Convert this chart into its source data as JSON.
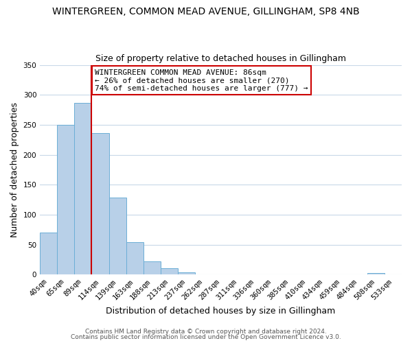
{
  "title": "WINTERGREEN, COMMON MEAD AVENUE, GILLINGHAM, SP8 4NB",
  "subtitle": "Size of property relative to detached houses in Gillingham",
  "xlabel": "Distribution of detached houses by size in Gillingham",
  "ylabel": "Number of detached properties",
  "bar_labels": [
    "40sqm",
    "65sqm",
    "89sqm",
    "114sqm",
    "139sqm",
    "163sqm",
    "188sqm",
    "213sqm",
    "237sqm",
    "262sqm",
    "287sqm",
    "311sqm",
    "336sqm",
    "360sqm",
    "385sqm",
    "410sqm",
    "434sqm",
    "459sqm",
    "484sqm",
    "508sqm",
    "533sqm"
  ],
  "bar_heights": [
    70,
    250,
    287,
    236,
    128,
    54,
    22,
    11,
    4,
    0,
    0,
    0,
    0,
    0,
    0,
    0,
    0,
    0,
    0,
    2,
    0
  ],
  "bar_color": "#b8d0e8",
  "bar_edge_color": "#6baed6",
  "background_color": "#ffffff",
  "grid_color": "#c8d8e8",
  "ylim": [
    0,
    350
  ],
  "yticks": [
    0,
    50,
    100,
    150,
    200,
    250,
    300,
    350
  ],
  "vline_color": "#cc0000",
  "annotation_text": "WINTERGREEN COMMON MEAD AVENUE: 86sqm\n← 26% of detached houses are smaller (270)\n74% of semi-detached houses are larger (777) →",
  "annotation_box_color": "#ffffff",
  "annotation_box_edge_color": "#cc0000",
  "footer_line1": "Contains HM Land Registry data © Crown copyright and database right 2024.",
  "footer_line2": "Contains public sector information licensed under the Open Government Licence v3.0.",
  "title_fontsize": 10,
  "subtitle_fontsize": 9,
  "axis_label_fontsize": 9,
  "tick_fontsize": 7.5,
  "annotation_fontsize": 8
}
